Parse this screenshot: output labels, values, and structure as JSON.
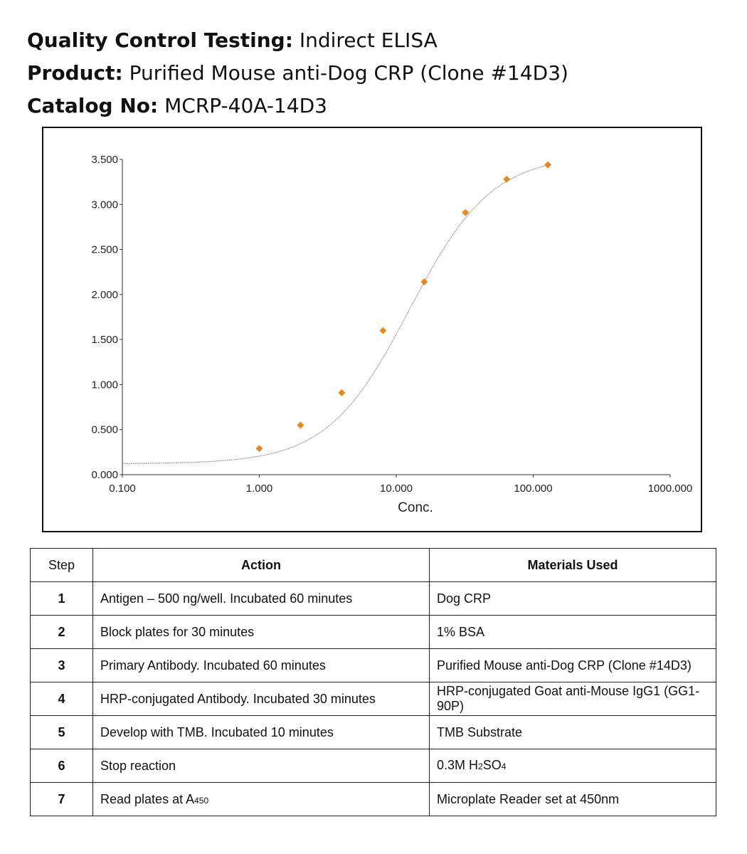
{
  "header": {
    "qc_label": "Quality Control Testing:",
    "qc_value": "Indirect ELISA",
    "product_label": "Product:",
    "product_value": "Purified Mouse anti-Dog CRP (Clone #14D3)",
    "catalog_label": "Catalog No:",
    "catalog_value": "MCRP-40A-14D3"
  },
  "chart_data": {
    "type": "scatter",
    "xlabel": "Conc.",
    "ylabel": "",
    "xscale": "log",
    "xlim": [
      0.1,
      1000
    ],
    "ylim": [
      0,
      3.5
    ],
    "x_ticks": [
      "0.100",
      "1.000",
      "10.000",
      "100.000",
      "1000.000"
    ],
    "y_ticks": [
      "0.000",
      "0.500",
      "1.000",
      "1.500",
      "2.000",
      "2.500",
      "3.000",
      "3.500"
    ],
    "points": {
      "x": [
        1,
        2,
        4,
        8,
        16,
        32,
        64,
        128
      ],
      "y": [
        0.29,
        0.55,
        0.91,
        1.6,
        2.14,
        2.91,
        3.28,
        3.44
      ]
    },
    "fit_curve": "sigmoidal (4PL) fit line",
    "grid": false,
    "legend": "none",
    "colors": {
      "points": "#e8891e",
      "curve": "#999999",
      "axis": "#333333"
    }
  },
  "table": {
    "headers": {
      "step": "Step",
      "action": "Action",
      "materials": "Materials Used"
    },
    "rows": [
      {
        "step": "1",
        "action": "Antigen – 500 ng/well. Incubated 60 minutes",
        "materials": "Dog CRP"
      },
      {
        "step": "2",
        "action": "Block plates for 30 minutes",
        "materials": "1% BSA"
      },
      {
        "step": "3",
        "action": "Primary Antibody. Incubated 60 minutes",
        "materials": "Purified Mouse anti-Dog CRP (Clone #14D3)"
      },
      {
        "step": "4",
        "action": "HRP-conjugated Antibody. Incubated 30 minutes",
        "materials": "HRP-conjugated Goat anti-Mouse IgG1 (GG1-90P)"
      },
      {
        "step": "5",
        "action": "Develop with TMB. Incubated 10 minutes",
        "materials": "TMB Substrate"
      },
      {
        "step": "6",
        "action": "Stop reaction",
        "materials_prefix": "0.3M H",
        "materials_sub1": "2",
        "materials_mid": "SO",
        "materials_sub2": "4"
      },
      {
        "step": "7",
        "action_prefix": "Read plates at A",
        "action_sub": "450",
        "materials": "Microplate Reader set at 450nm"
      }
    ]
  }
}
